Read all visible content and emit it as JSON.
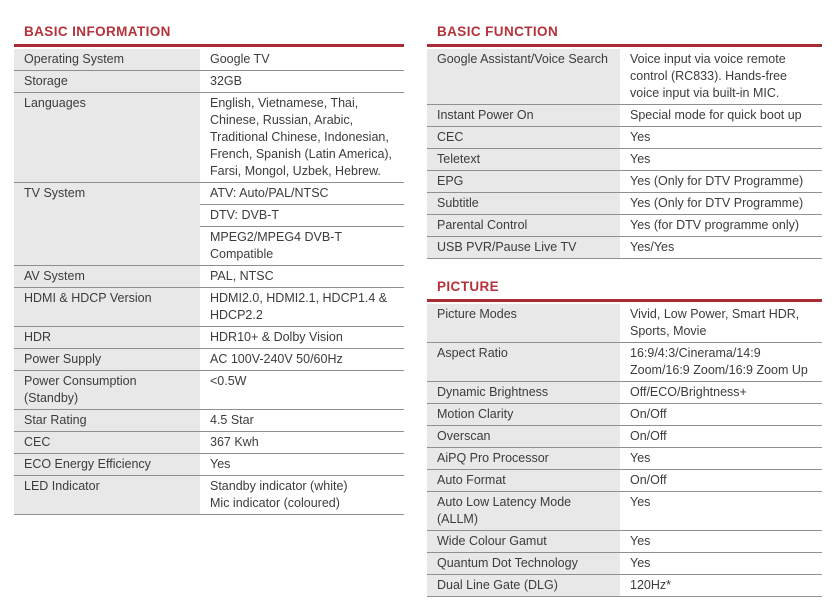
{
  "theme": {
    "accent": "#b5323b",
    "rule": "#a92b33",
    "divider": "#8f8f8f",
    "label_bg": "#e8e8e8",
    "text": "#3c3c3c",
    "page_bg": "#ffffff"
  },
  "sections": {
    "basic_information": {
      "title": "BASIC INFORMATION",
      "rows": [
        {
          "label": "Operating System",
          "values": [
            "Google TV"
          ]
        },
        {
          "label": "Storage",
          "values": [
            "32GB"
          ]
        },
        {
          "label": "Languages",
          "values": [
            "English, Vietnamese, Thai,\nChinese, Russian, Arabic,\nTraditional Chinese, Indonesian,\nFrench, Spanish (Latin America),\nFarsi, Mongol, Uzbek, Hebrew."
          ]
        },
        {
          "label": "TV System",
          "values": [
            "ATV: Auto/PAL/NTSC",
            "DTV: DVB-T",
            "MPEG2/MPEG4 DVB-T\nCompatible"
          ]
        },
        {
          "label": "AV System",
          "values": [
            "PAL, NTSC"
          ]
        },
        {
          "label": "HDMI & HDCP Version",
          "values": [
            "HDMI2.0, HDMI2.1, HDCP1.4 &\nHDCP2.2"
          ]
        },
        {
          "label": "HDR",
          "values": [
            "HDR10+ & Dolby Vision"
          ]
        },
        {
          "label": "Power Supply",
          "values": [
            "AC 100V-240V 50/60Hz"
          ]
        },
        {
          "label": "Power Consumption (Standby)",
          "values": [
            "<0.5W"
          ]
        },
        {
          "label": "Star Rating",
          "values": [
            "4.5 Star"
          ]
        },
        {
          "label": "CEC",
          "values": [
            "367 Kwh"
          ]
        },
        {
          "label": "ECO Energy Efficiency",
          "values": [
            "Yes"
          ]
        },
        {
          "label": "LED Indicator",
          "values": [
            "Standby indicator (white)\nMic indicator (coloured)"
          ]
        }
      ]
    },
    "basic_function": {
      "title": "BASIC FUNCTION",
      "rows": [
        {
          "label": "Google Assistant/Voice Search",
          "values": [
            "Voice input via voice remote\ncontrol (RC833). Hands-free\nvoice input via built-in MIC."
          ]
        },
        {
          "label": "Instant Power On",
          "values": [
            "Special mode for quick boot up"
          ]
        },
        {
          "label": "CEC",
          "values": [
            "Yes"
          ]
        },
        {
          "label": "Teletext",
          "values": [
            "Yes"
          ]
        },
        {
          "label": "EPG",
          "values": [
            "Yes (Only for DTV Programme)"
          ]
        },
        {
          "label": "Subtitle",
          "values": [
            "Yes (Only for DTV Programme)"
          ]
        },
        {
          "label": "Parental Control",
          "values": [
            "Yes (for DTV programme only)"
          ]
        },
        {
          "label": "USB PVR/Pause Live TV",
          "values": [
            "Yes/Yes"
          ]
        }
      ]
    },
    "picture": {
      "title": "PICTURE",
      "rows": [
        {
          "label": "Picture Modes",
          "values": [
            "Vivid, Low Power, Smart HDR,\nSports, Movie"
          ]
        },
        {
          "label": "Aspect Ratio",
          "values": [
            "16:9/4:3/Cinerama/14:9\nZoom/16:9 Zoom/16:9 Zoom Up"
          ]
        },
        {
          "label": "Dynamic Brightness",
          "values": [
            "Off/ECO/Brightness+"
          ]
        },
        {
          "label": "Motion Clarity",
          "values": [
            "On/Off"
          ]
        },
        {
          "label": "Overscan",
          "values": [
            "On/Off"
          ]
        },
        {
          "label": "AiPQ Pro Processor",
          "values": [
            "Yes"
          ]
        },
        {
          "label": "Auto Format",
          "values": [
            "On/Off"
          ]
        },
        {
          "label": "Auto Low Latency Mode (ALLM)",
          "values": [
            "Yes"
          ]
        },
        {
          "label": "Wide Colour Gamut",
          "values": [
            "Yes"
          ]
        },
        {
          "label": "Quantum Dot Technology",
          "values": [
            "Yes"
          ]
        },
        {
          "label": "Dual Line Gate (DLG)",
          "values": [
            "120Hz*"
          ]
        }
      ]
    }
  }
}
